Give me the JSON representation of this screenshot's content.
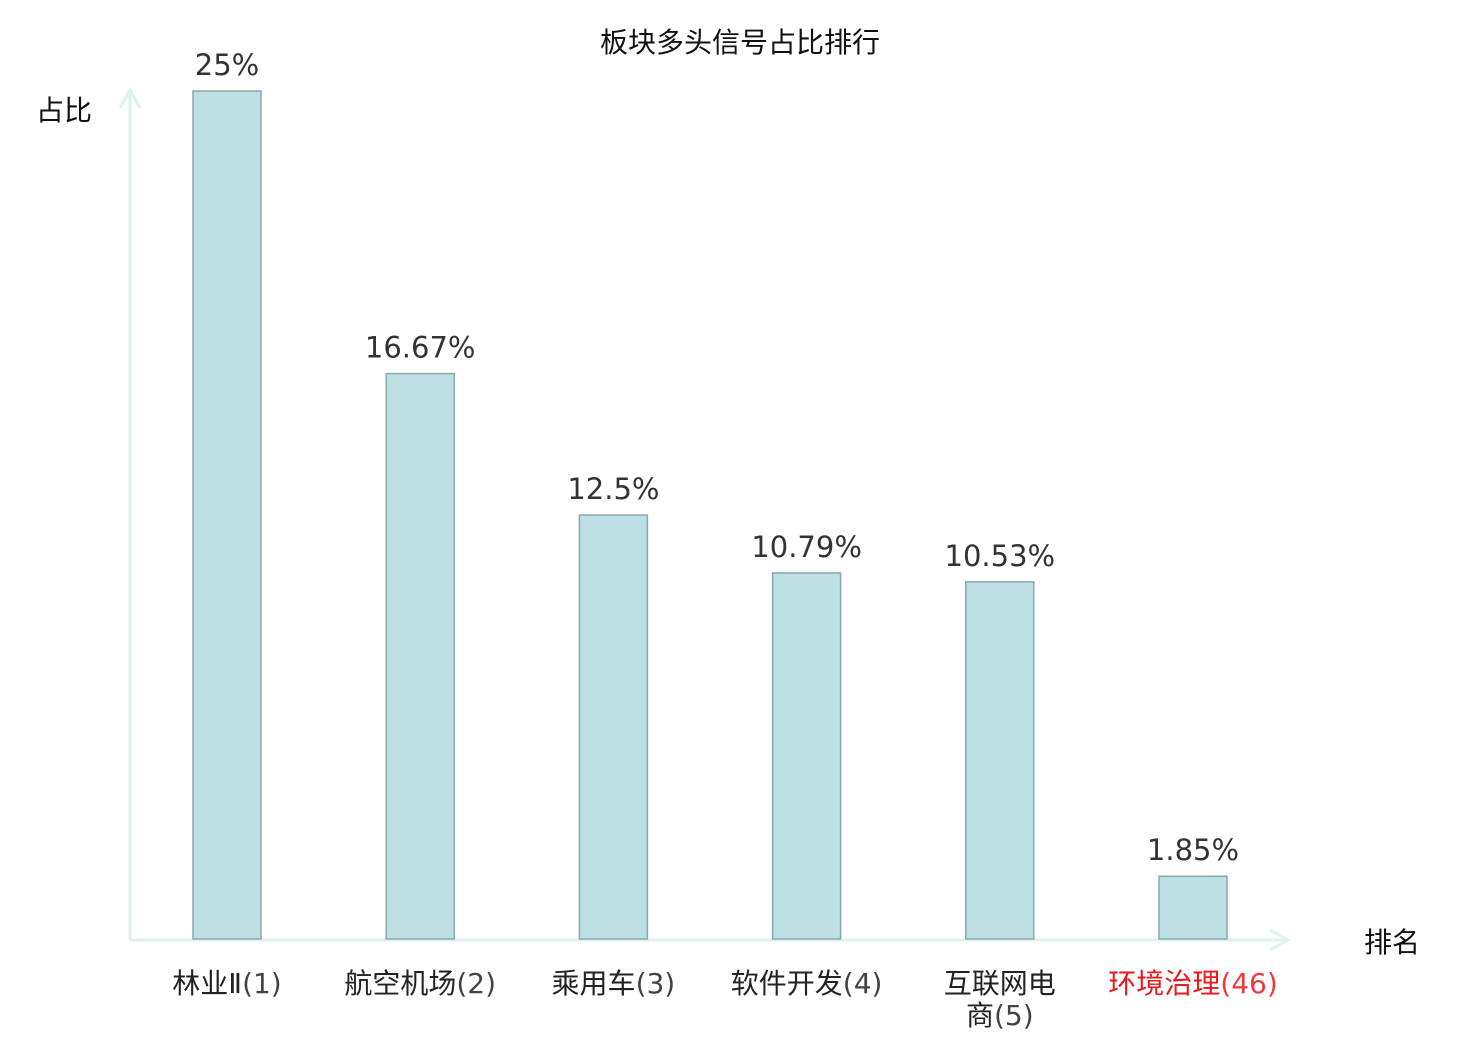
{
  "chart_data": {
    "type": "bar",
    "title": "板块多头信号占比排行",
    "xlabel": "排名",
    "ylabel": "占比",
    "categories": [
      {
        "name": "林业Ⅱ",
        "rank": "(1)",
        "highlight": false
      },
      {
        "name": "航空机场",
        "rank": "(2)",
        "highlight": false
      },
      {
        "name": "乘用车",
        "rank": "(3)",
        "highlight": false
      },
      {
        "name": "软件开发",
        "rank": "(4)",
        "highlight": false
      },
      {
        "name": "互联网电",
        "name2": "商",
        "rank": "(5)",
        "highlight": false
      },
      {
        "name": "环境治理",
        "rank": "(46)",
        "highlight": true
      }
    ],
    "values": [
      25,
      16.67,
      12.5,
      10.79,
      10.53,
      1.85
    ],
    "value_labels": [
      "25%",
      "16.67%",
      "12.5%",
      "10.79%",
      "10.53%",
      "1.85%"
    ],
    "ylim": [
      0,
      25
    ],
    "grid": false,
    "colors": {
      "bar_fill": "#bce0e3",
      "bar_stroke": "#8aa9ab",
      "axis": "#dff2f0",
      "highlight": "#e8181b",
      "text": "#222222",
      "value_text": "#333333"
    }
  }
}
